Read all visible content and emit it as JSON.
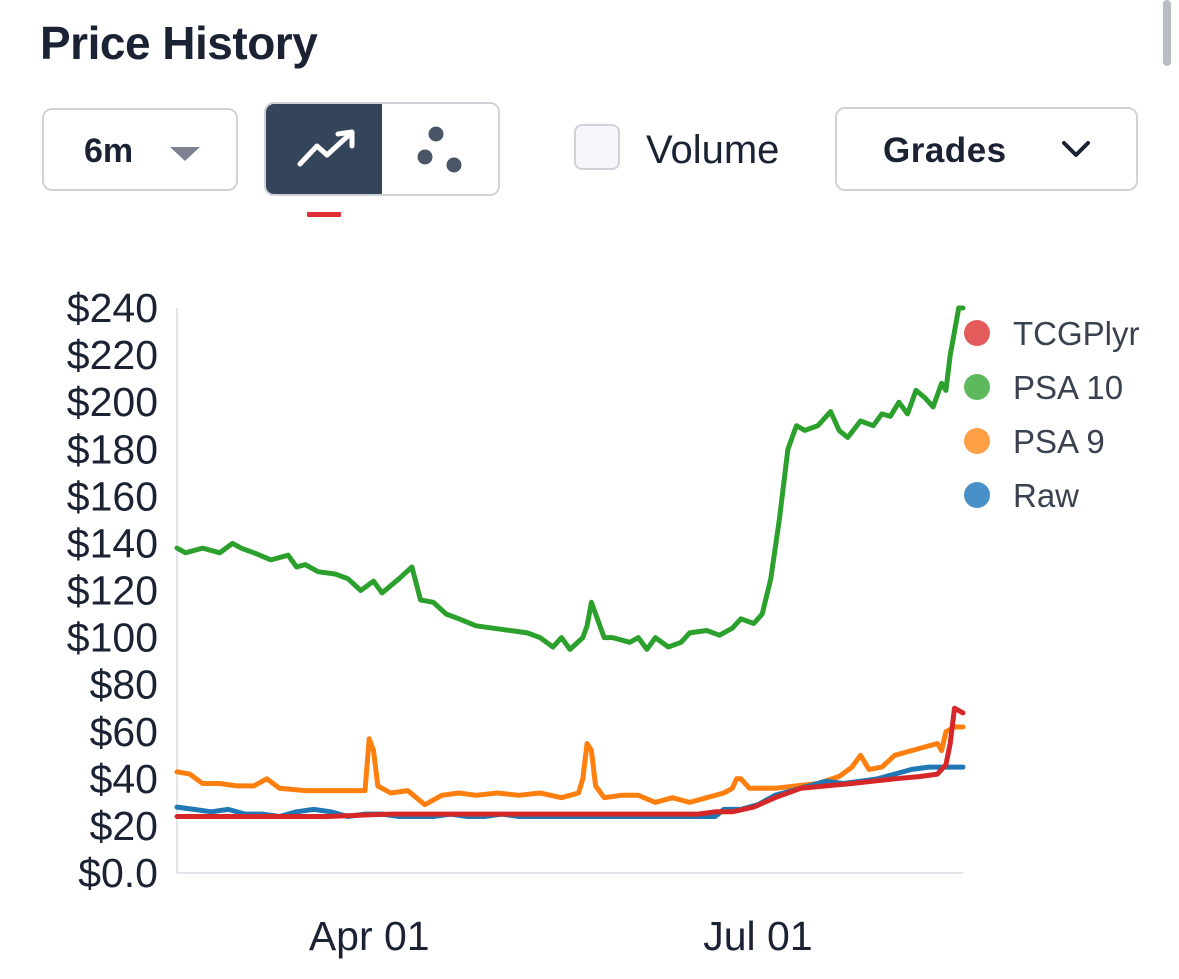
{
  "title": "Price History",
  "controls": {
    "range_value": "6m",
    "range_icon": "caret-down-icon",
    "line_view_icon": "trending-up-icon",
    "scatter_view_icon": "scatter-dots-icon",
    "volume_label": "Volume",
    "volume_checked": false,
    "grades_label": "Grades",
    "grades_icon": "chevron-down-icon"
  },
  "colors": {
    "title": "#1b2233",
    "active_toggle_bg": "#34445a",
    "active_indicator": "#e32d36",
    "axis_line": "#e2e6ec"
  },
  "chart_data": {
    "type": "line",
    "title": "",
    "xlabel": "",
    "ylabel": "",
    "ylim": [
      0,
      240
    ],
    "y_ticks": [
      "$0.0",
      "$20",
      "$40",
      "$60",
      "$80",
      "$100",
      "$120",
      "$140",
      "$160",
      "$180",
      "$200",
      "$220",
      "$240"
    ],
    "x_ticks": [
      {
        "label": "Apr 01",
        "day": 45
      },
      {
        "label": "Jul 01",
        "day": 136
      }
    ],
    "x_domain_days": [
      0,
      184
    ],
    "legend_position": "top-right",
    "series": [
      {
        "name": "TCGPlyr",
        "color": "#d62728",
        "legend_color": "#e35b5b",
        "points": [
          [
            0,
            24
          ],
          [
            10,
            24
          ],
          [
            20,
            24
          ],
          [
            35,
            24
          ],
          [
            50,
            25
          ],
          [
            70,
            25
          ],
          [
            85,
            25
          ],
          [
            100,
            25
          ],
          [
            115,
            25
          ],
          [
            122,
            25
          ],
          [
            126,
            26
          ],
          [
            130,
            26
          ],
          [
            135,
            28
          ],
          [
            140,
            32
          ],
          [
            146,
            36
          ],
          [
            152,
            37
          ],
          [
            158,
            38
          ],
          [
            163,
            39
          ],
          [
            168,
            40
          ],
          [
            174,
            41
          ],
          [
            178,
            42
          ],
          [
            180,
            46
          ],
          [
            181,
            55
          ],
          [
            182,
            70
          ],
          [
            184,
            68
          ]
        ]
      },
      {
        "name": "PSA 10",
        "color": "#2ca02c",
        "legend_color": "#5cba5c",
        "points": [
          [
            0,
            138
          ],
          [
            2,
            136
          ],
          [
            6,
            138
          ],
          [
            10,
            136
          ],
          [
            13,
            140
          ],
          [
            15,
            138
          ],
          [
            18,
            136
          ],
          [
            22,
            133
          ],
          [
            26,
            135
          ],
          [
            28,
            130
          ],
          [
            30,
            131
          ],
          [
            33,
            128
          ],
          [
            37,
            127
          ],
          [
            40,
            125
          ],
          [
            43,
            120
          ],
          [
            46,
            124
          ],
          [
            48,
            119
          ],
          [
            52,
            125
          ],
          [
            55,
            130
          ],
          [
            57,
            116
          ],
          [
            60,
            115
          ],
          [
            63,
            110
          ],
          [
            66,
            108
          ],
          [
            70,
            105
          ],
          [
            74,
            104
          ],
          [
            78,
            103
          ],
          [
            82,
            102
          ],
          [
            85,
            100
          ],
          [
            88,
            96
          ],
          [
            90,
            100
          ],
          [
            92,
            95
          ],
          [
            95,
            100
          ],
          [
            96,
            105
          ],
          [
            97,
            115
          ],
          [
            100,
            100
          ],
          [
            102,
            100
          ],
          [
            106,
            98
          ],
          [
            108,
            100
          ],
          [
            110,
            95
          ],
          [
            112,
            100
          ],
          [
            115,
            96
          ],
          [
            118,
            98
          ],
          [
            120,
            102
          ],
          [
            124,
            103
          ],
          [
            127,
            101
          ],
          [
            130,
            104
          ],
          [
            132,
            108
          ],
          [
            135,
            106
          ],
          [
            137,
            110
          ],
          [
            139,
            125
          ],
          [
            141,
            150
          ],
          [
            143,
            180
          ],
          [
            145,
            190
          ],
          [
            147,
            188
          ],
          [
            150,
            190
          ],
          [
            153,
            196
          ],
          [
            155,
            188
          ],
          [
            157,
            185
          ],
          [
            160,
            192
          ],
          [
            163,
            190
          ],
          [
            165,
            195
          ],
          [
            167,
            194
          ],
          [
            169,
            200
          ],
          [
            171,
            195
          ],
          [
            173,
            205
          ],
          [
            175,
            202
          ],
          [
            177,
            198
          ],
          [
            179,
            208
          ],
          [
            180,
            205
          ],
          [
            181,
            220
          ],
          [
            182,
            230
          ],
          [
            183,
            240
          ],
          [
            184,
            240
          ]
        ]
      },
      {
        "name": "PSA 9",
        "color": "#ff7f0e",
        "legend_color": "#ff9f46",
        "points": [
          [
            0,
            43
          ],
          [
            3,
            42
          ],
          [
            6,
            38
          ],
          [
            10,
            38
          ],
          [
            14,
            37
          ],
          [
            18,
            37
          ],
          [
            21,
            40
          ],
          [
            24,
            36
          ],
          [
            30,
            35
          ],
          [
            38,
            35
          ],
          [
            42,
            35
          ],
          [
            44,
            35
          ],
          [
            45,
            57
          ],
          [
            46,
            52
          ],
          [
            47,
            37
          ],
          [
            50,
            34
          ],
          [
            54,
            35
          ],
          [
            58,
            29
          ],
          [
            62,
            33
          ],
          [
            66,
            34
          ],
          [
            70,
            33
          ],
          [
            75,
            34
          ],
          [
            80,
            33
          ],
          [
            85,
            34
          ],
          [
            90,
            32
          ],
          [
            94,
            34
          ],
          [
            95,
            40
          ],
          [
            96,
            55
          ],
          [
            97,
            52
          ],
          [
            98,
            37
          ],
          [
            100,
            32
          ],
          [
            104,
            33
          ],
          [
            108,
            33
          ],
          [
            112,
            30
          ],
          [
            116,
            32
          ],
          [
            120,
            30
          ],
          [
            124,
            32
          ],
          [
            128,
            34
          ],
          [
            130,
            36
          ],
          [
            131,
            40
          ],
          [
            132,
            40
          ],
          [
            134,
            36
          ],
          [
            140,
            36
          ],
          [
            145,
            37
          ],
          [
            150,
            38
          ],
          [
            155,
            41
          ],
          [
            158,
            45
          ],
          [
            160,
            50
          ],
          [
            162,
            44
          ],
          [
            165,
            45
          ],
          [
            168,
            50
          ],
          [
            172,
            52
          ],
          [
            176,
            54
          ],
          [
            178,
            55
          ],
          [
            179,
            52
          ],
          [
            180,
            60
          ],
          [
            182,
            62
          ],
          [
            184,
            62
          ]
        ]
      },
      {
        "name": "Raw",
        "color": "#1f77b4",
        "legend_color": "#4a90c8",
        "points": [
          [
            0,
            28
          ],
          [
            4,
            27
          ],
          [
            8,
            26
          ],
          [
            12,
            27
          ],
          [
            16,
            25
          ],
          [
            20,
            25
          ],
          [
            24,
            24
          ],
          [
            28,
            26
          ],
          [
            32,
            27
          ],
          [
            36,
            26
          ],
          [
            40,
            24
          ],
          [
            44,
            25
          ],
          [
            48,
            25
          ],
          [
            52,
            24
          ],
          [
            56,
            24
          ],
          [
            60,
            24
          ],
          [
            64,
            25
          ],
          [
            68,
            24
          ],
          [
            72,
            24
          ],
          [
            76,
            25
          ],
          [
            80,
            24
          ],
          [
            84,
            24
          ],
          [
            88,
            24
          ],
          [
            92,
            24
          ],
          [
            96,
            24
          ],
          [
            100,
            24
          ],
          [
            104,
            24
          ],
          [
            108,
            24
          ],
          [
            112,
            24
          ],
          [
            116,
            24
          ],
          [
            120,
            24
          ],
          [
            124,
            24
          ],
          [
            126,
            24
          ],
          [
            128,
            27
          ],
          [
            132,
            27
          ],
          [
            136,
            29
          ],
          [
            140,
            33
          ],
          [
            144,
            35
          ],
          [
            148,
            37
          ],
          [
            152,
            39
          ],
          [
            156,
            38
          ],
          [
            160,
            39
          ],
          [
            164,
            40
          ],
          [
            168,
            42
          ],
          [
            172,
            44
          ],
          [
            176,
            45
          ],
          [
            180,
            45
          ],
          [
            184,
            45
          ]
        ]
      }
    ]
  }
}
